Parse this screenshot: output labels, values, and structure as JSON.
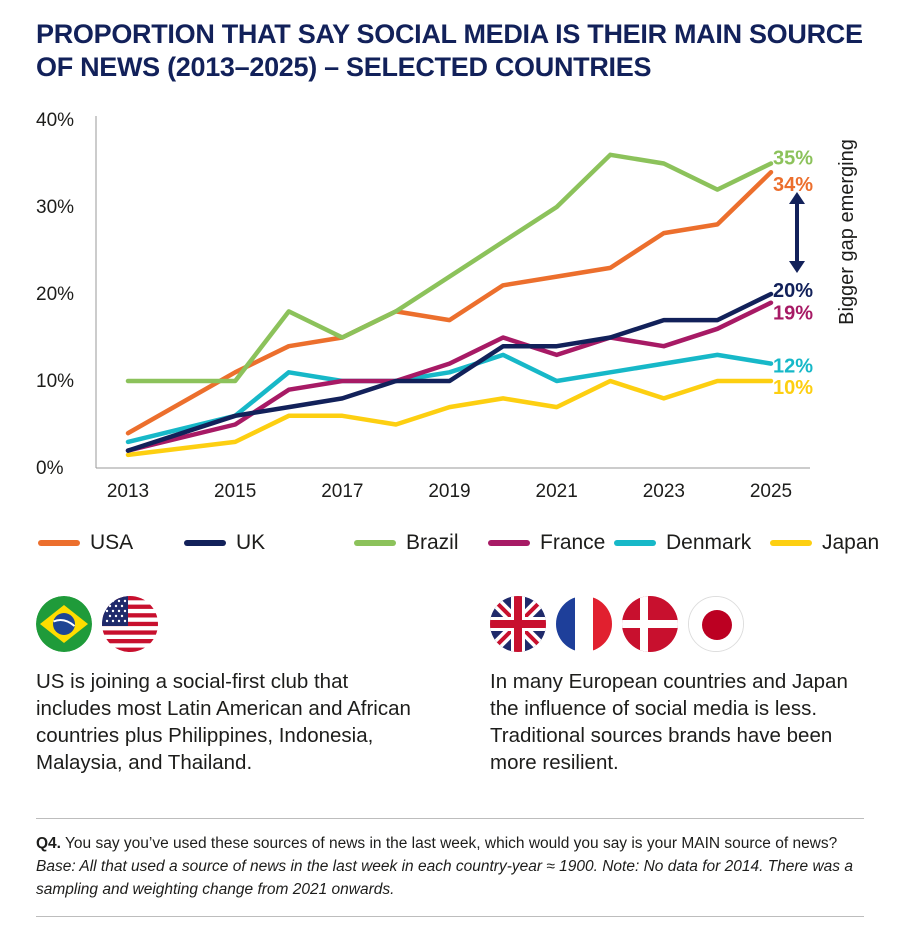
{
  "title": "PROPORTION THAT SAY SOCIAL MEDIA IS THEIR MAIN SOURCE OF NEWS (2013–2025) – SELECTED COUNTRIES",
  "chart_data": {
    "type": "line",
    "x": [
      2013,
      2015,
      2016,
      2017,
      2018,
      2019,
      2020,
      2021,
      2022,
      2023,
      2024,
      2025
    ],
    "x_ticks": [
      "2013",
      "2015",
      "2017",
      "2019",
      "2021",
      "2023",
      "2025"
    ],
    "y_ticks": [
      "0%",
      "10%",
      "20%",
      "30%",
      "40%"
    ],
    "ylim": [
      0,
      40
    ],
    "grid": false,
    "legend_position": "bottom",
    "series": [
      {
        "name": "USA",
        "color": "#ec6f2d",
        "values": [
          4,
          11,
          14,
          15,
          18,
          17,
          21,
          22,
          23,
          27,
          28,
          34
        ],
        "end_label": "34%"
      },
      {
        "name": "UK",
        "color": "#12215a",
        "values": [
          2,
          6,
          7,
          8,
          10,
          10,
          14,
          14,
          15,
          17,
          17,
          20
        ],
        "end_label": "20%"
      },
      {
        "name": "Brazil",
        "color": "#8cc25b",
        "values": [
          10,
          10,
          18,
          15,
          18,
          22,
          26,
          30,
          36,
          35,
          32,
          35
        ],
        "end_label": "35%"
      },
      {
        "name": "France",
        "color": "#a71a65",
        "values": [
          2,
          5,
          9,
          10,
          10,
          12,
          15,
          13,
          15,
          14,
          16,
          19
        ],
        "end_label": "19%"
      },
      {
        "name": "Denmark",
        "color": "#17b8c8",
        "values": [
          3,
          6,
          11,
          10,
          10,
          11,
          13,
          10,
          11,
          12,
          13,
          12
        ],
        "end_label": "12%"
      },
      {
        "name": "Japan",
        "color": "#fdcf11",
        "values": [
          1.5,
          3,
          6,
          6,
          5,
          7,
          8,
          7,
          10,
          8,
          10,
          10
        ],
        "end_label": "10%"
      }
    ],
    "annotation": "Bigger gap emerging"
  },
  "legend": [
    {
      "label": "USA",
      "color": "#ec6f2d"
    },
    {
      "label": "UK",
      "color": "#12215a"
    },
    {
      "label": "Brazil",
      "color": "#8cc25b"
    },
    {
      "label": "France",
      "color": "#a71a65"
    },
    {
      "label": "Denmark",
      "color": "#17b8c8"
    },
    {
      "label": "Japan",
      "color": "#fdcf11"
    }
  ],
  "left_panel": {
    "flags": [
      "brazil-flag-icon",
      "usa-flag-icon"
    ],
    "text": "US is joining a social-first club that includes most Latin American and African countries plus Philippines, Indonesia, Malaysia, and Thailand."
  },
  "right_panel": {
    "flags": [
      "uk-flag-icon",
      "france-flag-icon",
      "denmark-flag-icon",
      "japan-flag-icon"
    ],
    "text": "In many European countries and Japan the influence of social media is less. Traditional sources brands have been more resilient."
  },
  "footnote": {
    "q_label": "Q4.",
    "question": " You say you’ve used these sources of news in the last week, which would you say is your MAIN source of news? ",
    "base": "Base: All that used a source of news in the last week in each country-year ≈ 1900. Note: No data for 2014. There was a sampling and weighting change from 2021 onwards."
  }
}
